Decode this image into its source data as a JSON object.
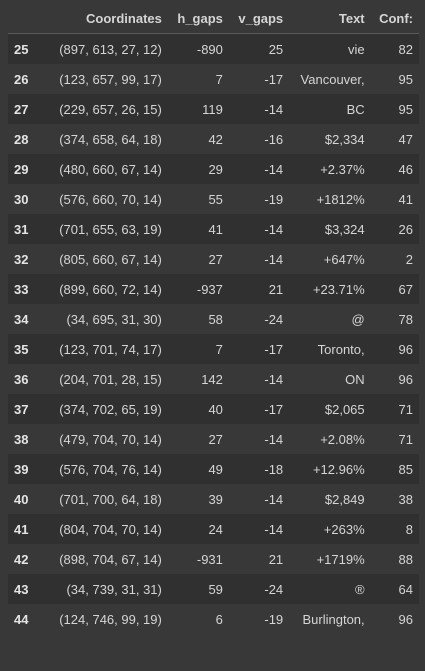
{
  "table": {
    "columns": [
      "",
      "Coordinates",
      "h_gaps",
      "v_gaps",
      "Text",
      "Conf:"
    ],
    "rows": [
      {
        "index": "25",
        "coordinates": "(897, 613, 27, 12)",
        "h_gaps": "-890",
        "v_gaps": "25",
        "text": "vie",
        "conf": "82"
      },
      {
        "index": "26",
        "coordinates": "(123, 657, 99, 17)",
        "h_gaps": "7",
        "v_gaps": "-17",
        "text": "Vancouver,",
        "conf": "95"
      },
      {
        "index": "27",
        "coordinates": "(229, 657, 26, 15)",
        "h_gaps": "119",
        "v_gaps": "-14",
        "text": "BC",
        "conf": "95"
      },
      {
        "index": "28",
        "coordinates": "(374, 658, 64, 18)",
        "h_gaps": "42",
        "v_gaps": "-16",
        "text": "$2,334",
        "conf": "47"
      },
      {
        "index": "29",
        "coordinates": "(480, 660, 67, 14)",
        "h_gaps": "29",
        "v_gaps": "-14",
        "text": "+2.37%",
        "conf": "46"
      },
      {
        "index": "30",
        "coordinates": "(576, 660, 70, 14)",
        "h_gaps": "55",
        "v_gaps": "-19",
        "text": "+1812%",
        "conf": "41"
      },
      {
        "index": "31",
        "coordinates": "(701, 655, 63, 19)",
        "h_gaps": "41",
        "v_gaps": "-14",
        "text": "$3,324",
        "conf": "26"
      },
      {
        "index": "32",
        "coordinates": "(805, 660, 67, 14)",
        "h_gaps": "27",
        "v_gaps": "-14",
        "text": "+647%",
        "conf": "2"
      },
      {
        "index": "33",
        "coordinates": "(899, 660, 72, 14)",
        "h_gaps": "-937",
        "v_gaps": "21",
        "text": "+23.71%",
        "conf": "67"
      },
      {
        "index": "34",
        "coordinates": "(34, 695, 31, 30)",
        "h_gaps": "58",
        "v_gaps": "-24",
        "text": "@",
        "conf": "78"
      },
      {
        "index": "35",
        "coordinates": "(123, 701, 74, 17)",
        "h_gaps": "7",
        "v_gaps": "-17",
        "text": "Toronto,",
        "conf": "96"
      },
      {
        "index": "36",
        "coordinates": "(204, 701, 28, 15)",
        "h_gaps": "142",
        "v_gaps": "-14",
        "text": "ON",
        "conf": "96"
      },
      {
        "index": "37",
        "coordinates": "(374, 702, 65, 19)",
        "h_gaps": "40",
        "v_gaps": "-17",
        "text": "$2,065",
        "conf": "71"
      },
      {
        "index": "38",
        "coordinates": "(479, 704, 70, 14)",
        "h_gaps": "27",
        "v_gaps": "-14",
        "text": "+2.08%",
        "conf": "71"
      },
      {
        "index": "39",
        "coordinates": "(576, 704, 76, 14)",
        "h_gaps": "49",
        "v_gaps": "-18",
        "text": "+12.96%",
        "conf": "85"
      },
      {
        "index": "40",
        "coordinates": "(701, 700, 64, 18)",
        "h_gaps": "39",
        "v_gaps": "-14",
        "text": "$2,849",
        "conf": "38"
      },
      {
        "index": "41",
        "coordinates": "(804, 704, 70, 14)",
        "h_gaps": "24",
        "v_gaps": "-14",
        "text": "+263%",
        "conf": "8"
      },
      {
        "index": "42",
        "coordinates": "(898, 704, 67, 14)",
        "h_gaps": "-931",
        "v_gaps": "21",
        "text": "+1719%",
        "conf": "88"
      },
      {
        "index": "43",
        "coordinates": "(34, 739, 31, 31)",
        "h_gaps": "59",
        "v_gaps": "-24",
        "text": "®",
        "conf": "64"
      },
      {
        "index": "44",
        "coordinates": "(124, 746, 99, 19)",
        "h_gaps": "6",
        "v_gaps": "-19",
        "text": "Burlington,",
        "conf": "96"
      }
    ]
  }
}
